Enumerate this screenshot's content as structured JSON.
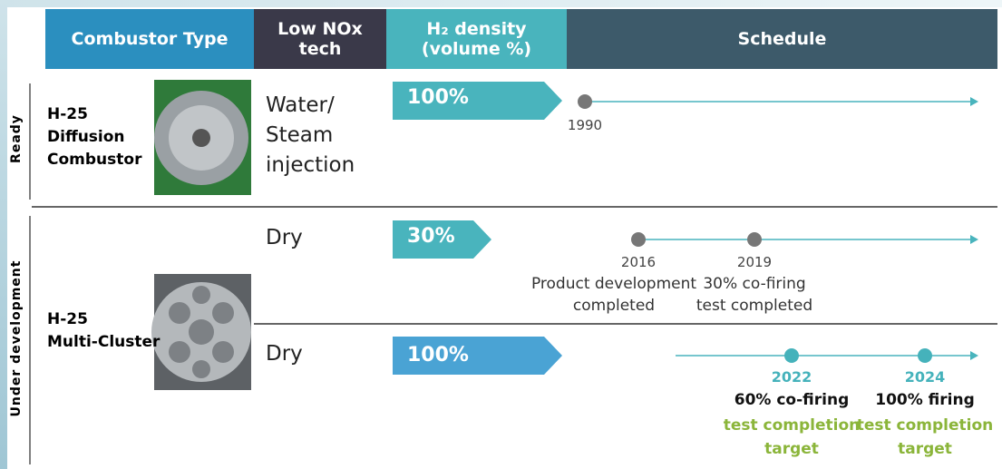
{
  "header": {
    "columns": [
      "Combustor Type",
      "Low NOx tech",
      "H₂ density\n(volume %)",
      "Schedule"
    ]
  },
  "groups": [
    "Ready",
    "Under development"
  ],
  "combustors": [
    {
      "name": "H-25\nDiffusion\nCombustor"
    },
    {
      "name": "H-25\nMulti-Cluster"
    }
  ],
  "rows": [
    {
      "tech": "Water/\nSteam\ninjection",
      "density": "100%",
      "events": [
        {
          "year": "1990"
        }
      ]
    },
    {
      "tech": "Dry",
      "density": "30%",
      "events": [
        {
          "year": "2016",
          "desc": "Product development\ncompleted"
        },
        {
          "year": "2019",
          "desc": "30% co-firing\ntest completed"
        }
      ]
    },
    {
      "tech": "Dry",
      "density": "100% (target)",
      "events": [
        {
          "year": "2022",
          "desc": "60% co-firing",
          "note": "test completion\ntarget"
        },
        {
          "year": "2024",
          "desc": "100% firing",
          "note": "test completion\ntarget"
        }
      ]
    }
  ]
}
